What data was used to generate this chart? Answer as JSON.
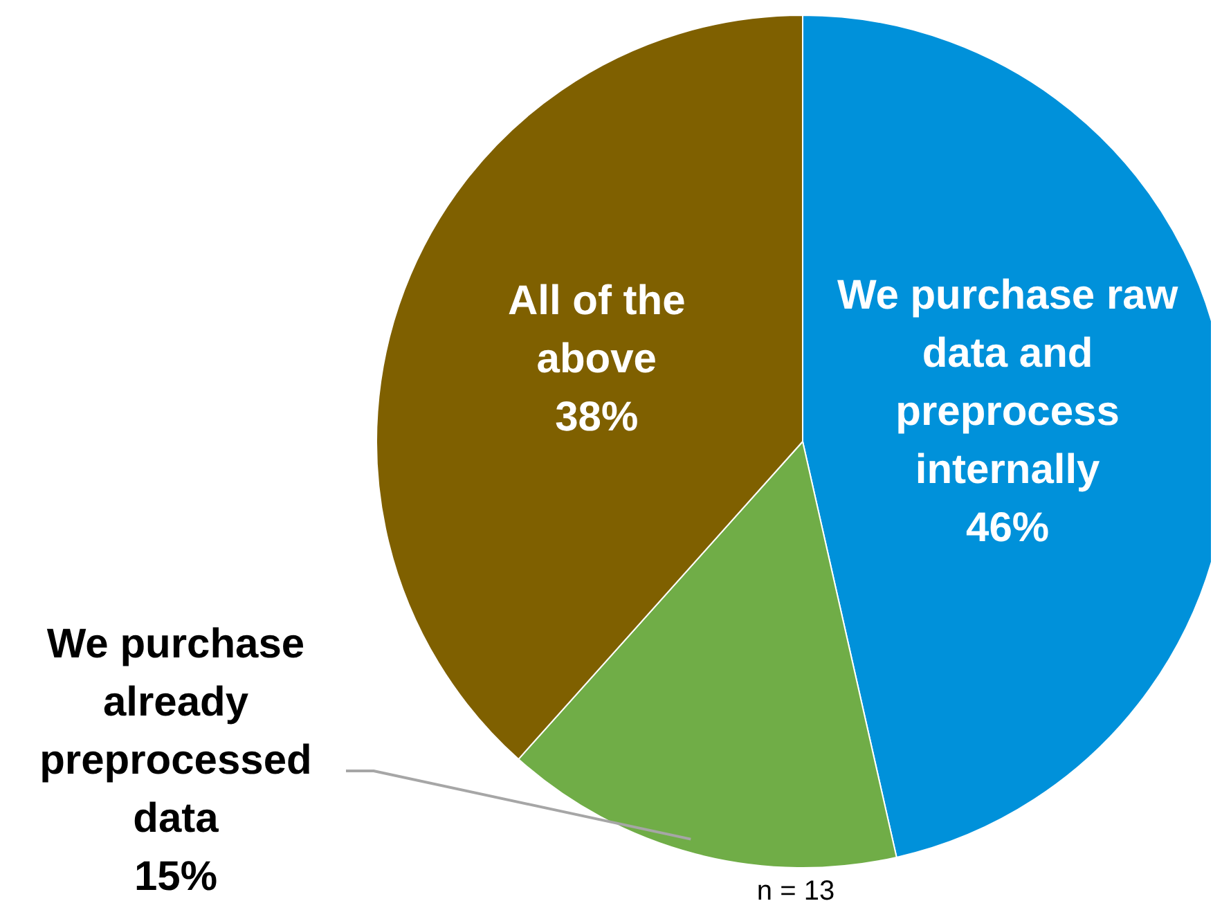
{
  "chart_data": {
    "type": "pie",
    "categories": [
      "We purchase raw data and preprocess internally",
      "We purchase already preprocessed data",
      "All of the above"
    ],
    "values": [
      46,
      15,
      38
    ],
    "value_labels": [
      "46%",
      "15%",
      "38%"
    ],
    "colors": [
      "#0091da",
      "#70ad47",
      "#7f6000"
    ],
    "annotations": [
      "n = 13"
    ]
  }
}
